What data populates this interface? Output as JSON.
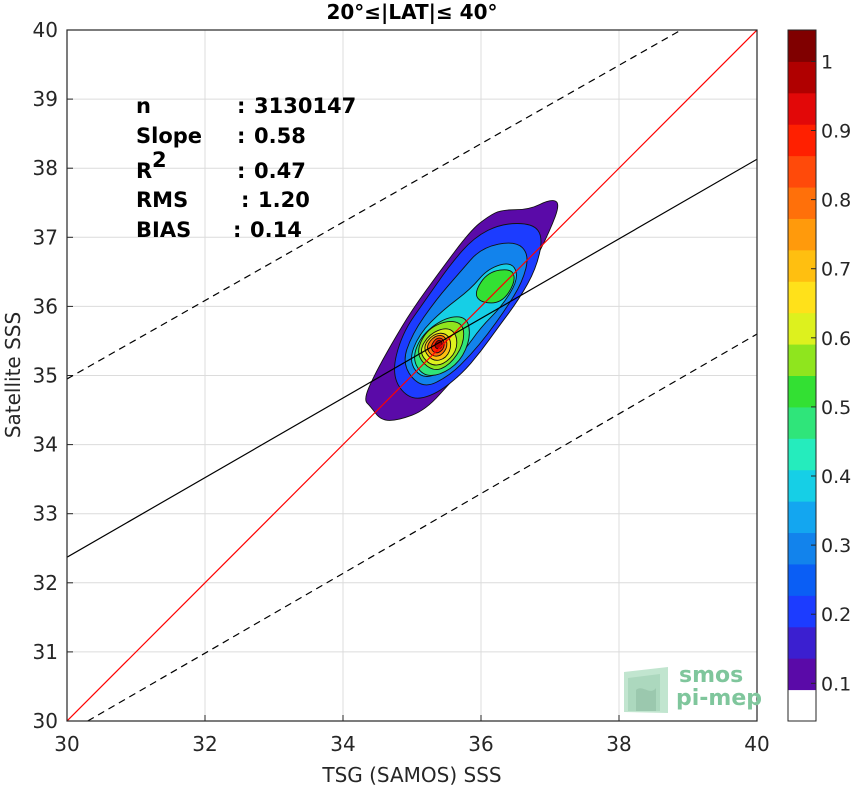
{
  "chart_data": {
    "type": "contour",
    "title": "20°≤|LAT|≤ 40°",
    "xlabel": "TSG (SAMOS) SSS",
    "ylabel": "Satellite SSS",
    "xlim": [
      30,
      40
    ],
    "ylim": [
      30,
      40
    ],
    "xticks": [
      "30",
      "32",
      "34",
      "36",
      "38",
      "40"
    ],
    "yticks": [
      "30",
      "31",
      "32",
      "33",
      "34",
      "35",
      "36",
      "37",
      "38",
      "39",
      "40"
    ],
    "grid": true,
    "stats": [
      {
        "label": "n",
        "sep": ":",
        "value": "3130147"
      },
      {
        "label": "Slope",
        "sep": ":",
        "value": "0.58"
      },
      {
        "label": "R",
        "sup": "2",
        "sep": ":",
        "value": "0.47"
      },
      {
        "label": "RMS",
        "sep": ":",
        "value": "1.20"
      },
      {
        "label": "BIAS",
        "sep": ":",
        "value": "0.14"
      }
    ],
    "lines": {
      "identity": {
        "x": [
          30,
          40
        ],
        "y": [
          30,
          40
        ],
        "color": "#ff0000"
      },
      "regression": {
        "x": [
          30,
          40
        ],
        "y": [
          32.37,
          38.13
        ],
        "color": "#000000"
      },
      "upper_bound": {
        "x": [
          30,
          38.9
        ],
        "y": [
          34.95,
          40
        ],
        "color": "#000000",
        "style": "dashed"
      },
      "lower_bound": {
        "x": [
          30.3,
          40
        ],
        "y": [
          30,
          35.6
        ],
        "color": "#000000",
        "style": "dashed"
      }
    },
    "density_peak": {
      "x": 35.4,
      "y": 35.45
    },
    "density_secondary_peak": {
      "x": 36.3,
      "y": 36.3
    },
    "colorbar": {
      "ticks": [
        "0.1",
        "0.2",
        "0.3",
        "0.4",
        "0.5",
        "0.6",
        "0.7",
        "0.8",
        "0.9",
        "1"
      ],
      "range": [
        0,
        1
      ],
      "colors": [
        "#ffffff",
        "#5a0aa8",
        "#3b1fd0",
        "#1c3cff",
        "#0a5ef5",
        "#1283ec",
        "#13a6f0",
        "#16cfe6",
        "#25ecbd",
        "#2fe57a",
        "#33e033",
        "#8fe51e",
        "#ddf11e",
        "#ffe11a",
        "#ffbf10",
        "#ff9a0c",
        "#ff700a",
        "#ff4a0a",
        "#ff2000",
        "#e20808",
        "#b00000",
        "#800000"
      ]
    }
  },
  "watermark": {
    "line1": "smos",
    "line2": "pi-mep"
  }
}
